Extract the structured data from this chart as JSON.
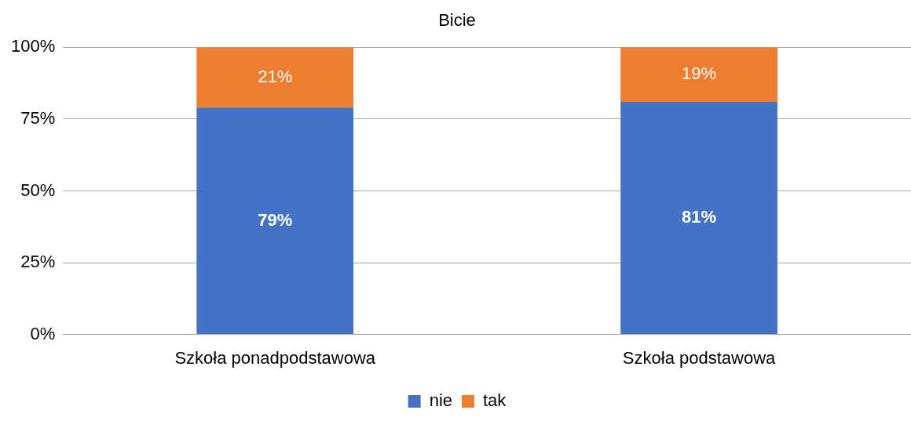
{
  "chart_data": {
    "type": "bar",
    "title": "Bicie",
    "categories": [
      "Szkoła ponadpodstawowa",
      "Szkoła podstawowa"
    ],
    "stacked": true,
    "series": [
      {
        "name": "nie",
        "color": "#4472c4",
        "values": [
          79,
          81
        ],
        "value_labels": [
          "79%",
          "81%"
        ]
      },
      {
        "name": "tak",
        "color": "#ed7d31",
        "values": [
          21,
          19
        ],
        "value_labels": [
          "21%",
          "19%"
        ]
      }
    ],
    "ylim": [
      0,
      100
    ],
    "yticks": [
      {
        "value": 0,
        "label": "0%"
      },
      {
        "value": 25,
        "label": "25%"
      },
      {
        "value": 50,
        "label": "50%"
      },
      {
        "value": 75,
        "label": "75%"
      },
      {
        "value": 100,
        "label": "100%"
      }
    ],
    "grid": "y",
    "legend": "bottom"
  }
}
